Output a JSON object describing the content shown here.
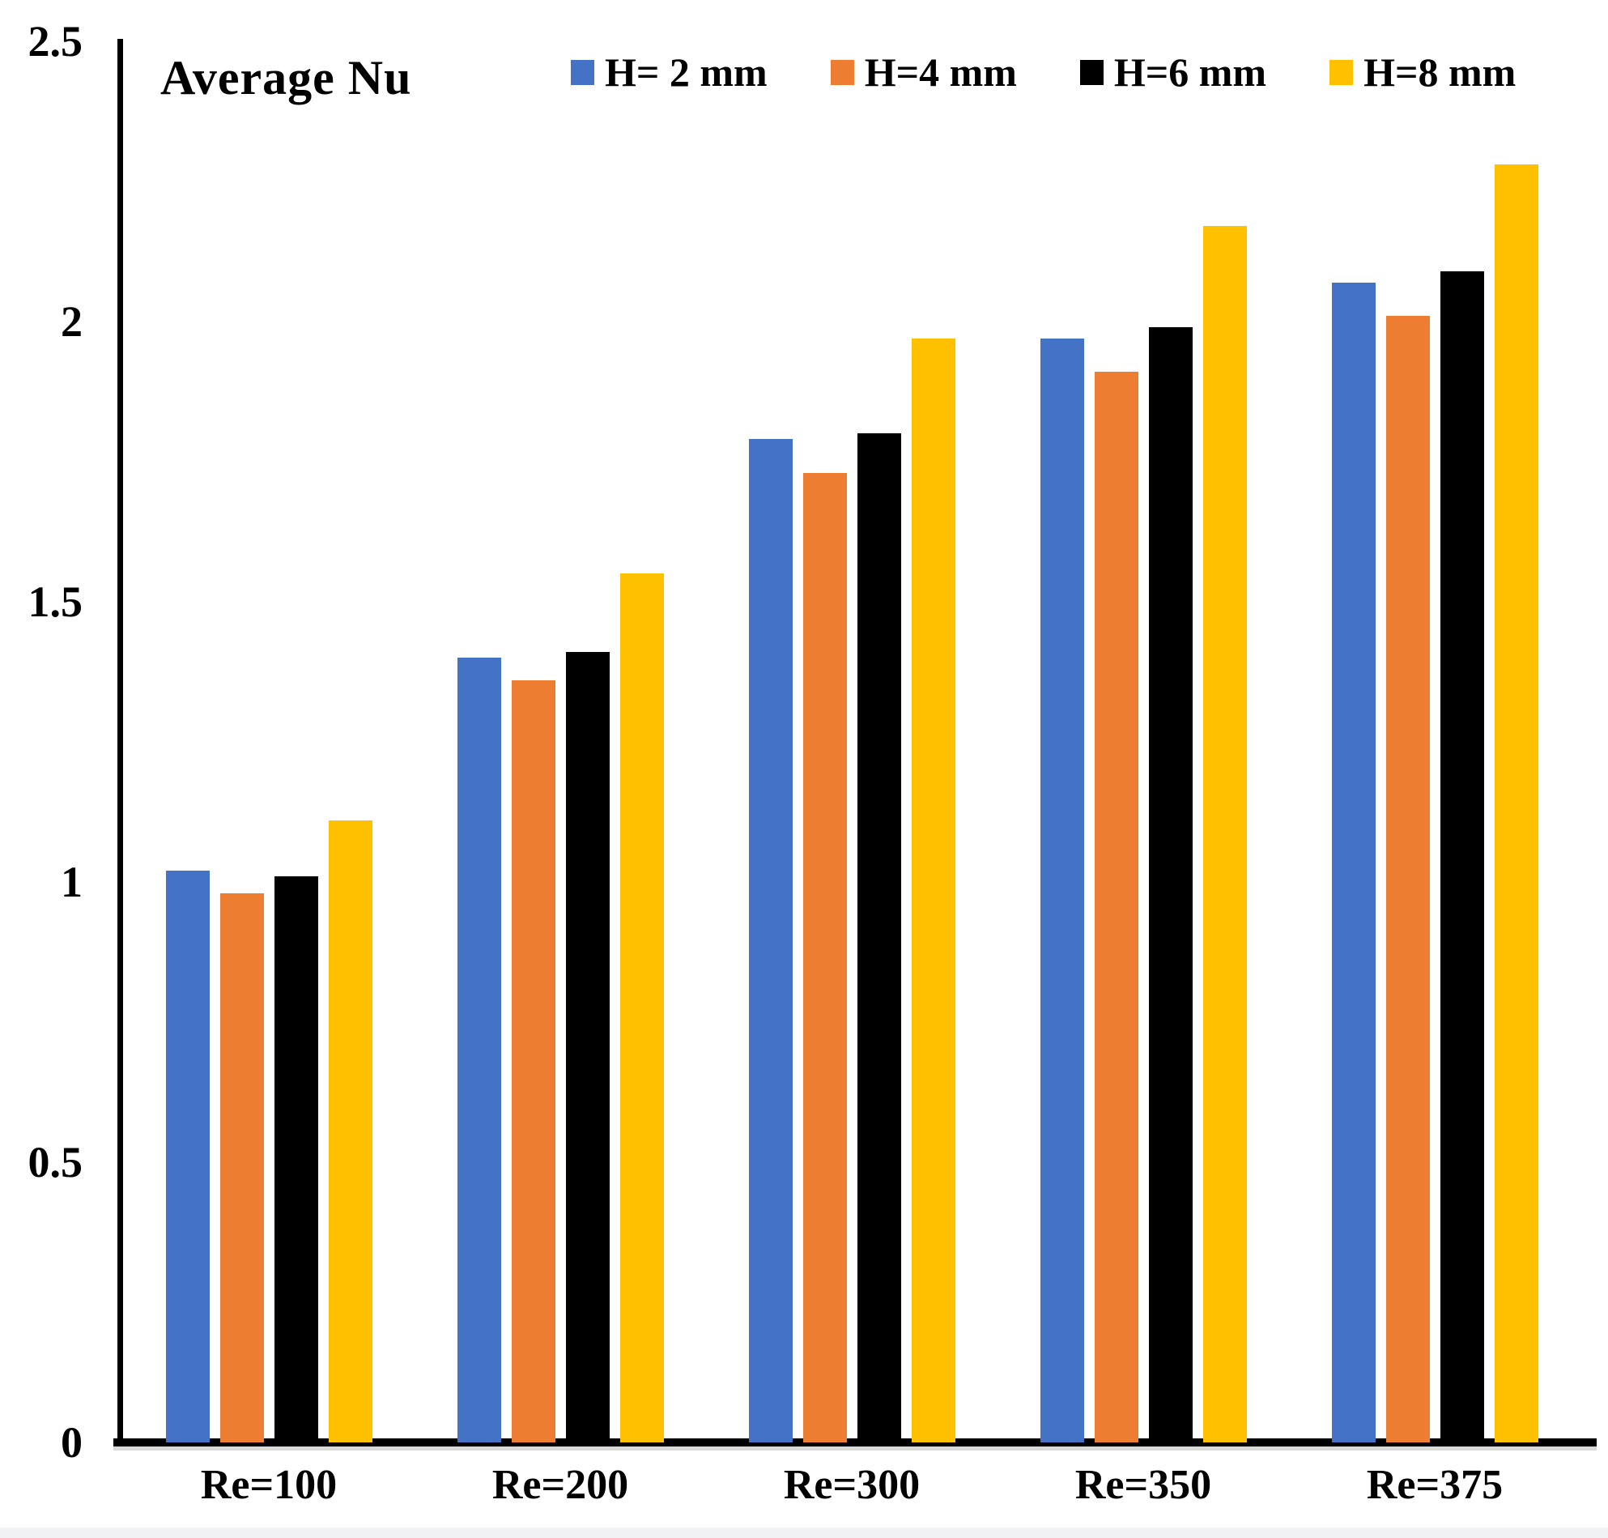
{
  "chart_data": {
    "type": "bar",
    "title": "Average Nu",
    "xlabel": "",
    "ylabel": "",
    "categories": [
      "Re=100",
      "Re=200",
      "Re=300",
      "Re=350",
      "Re=375"
    ],
    "series": [
      {
        "name": "H= 2 mm",
        "color": "#4472C4",
        "values": [
          1.02,
          1.4,
          1.79,
          1.97,
          2.07
        ]
      },
      {
        "name": "H=4 mm",
        "color": "#ED7D31",
        "values": [
          0.98,
          1.36,
          1.73,
          1.91,
          2.01
        ]
      },
      {
        "name": "H=6 mm",
        "color": "#000000",
        "values": [
          1.01,
          1.41,
          1.8,
          1.99,
          2.09
        ]
      },
      {
        "name": "H=8 mm",
        "color": "#FFC000",
        "values": [
          1.11,
          1.55,
          1.97,
          2.17,
          2.28
        ]
      }
    ],
    "ylim": [
      0,
      2.5
    ],
    "yticks": [
      0,
      0.5,
      1,
      1.5,
      2,
      2.5
    ],
    "ytick_labels": [
      "0",
      "0.5",
      "1",
      "1.5",
      "2",
      "2.5"
    ],
    "legend_position": "top",
    "grid": false,
    "axis_color": "#000000",
    "background_color": "#ffffff"
  }
}
